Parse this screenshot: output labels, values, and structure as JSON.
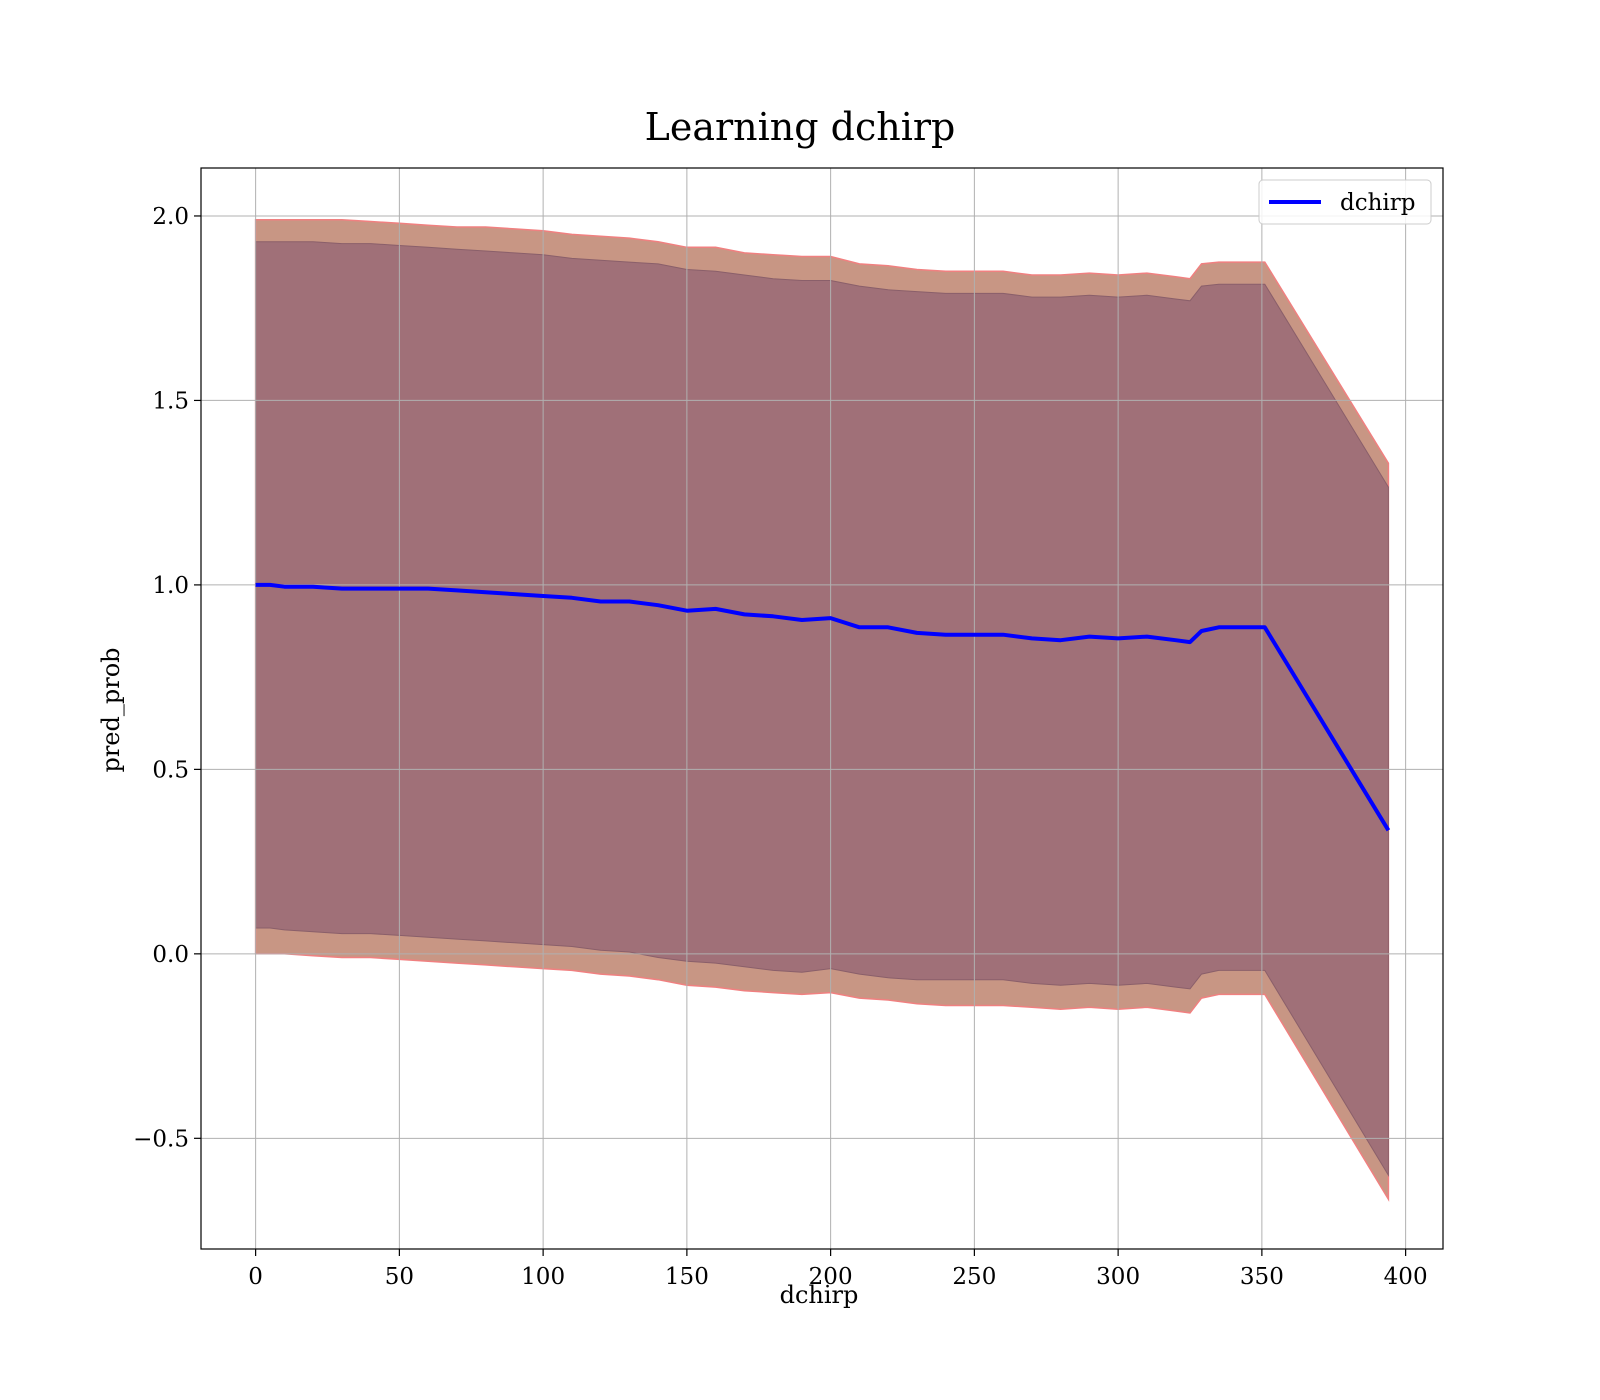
{
  "chart_data": {
    "type": "line",
    "title": "Learning dchirp",
    "xlabel": "dchirp",
    "ylabel": "pred_prob",
    "xlim": [
      -19,
      413
    ],
    "ylim": [
      -0.8,
      2.13
    ],
    "xticks": [
      0,
      50,
      100,
      150,
      200,
      250,
      300,
      350,
      400
    ],
    "yticks": [
      -0.5,
      0.0,
      0.5,
      1.0,
      1.5,
      2.0
    ],
    "xtick_labels": [
      "0",
      "50",
      "100",
      "150",
      "200",
      "250",
      "300",
      "350",
      "400"
    ],
    "ytick_labels": [
      "−0.5",
      "0.0",
      "0.5",
      "1.0",
      "1.5",
      "2.0"
    ],
    "grid": true,
    "legend": {
      "position": "top-right",
      "entries": [
        {
          "label": "dchirp",
          "color": "#0000ff"
        }
      ]
    },
    "colors": {
      "line": "#0000ff",
      "inner_band": "#a07078",
      "outer_band": "#c89684",
      "band_edge": "#f08080",
      "grid": "#b0b0b0"
    },
    "series": [
      {
        "name": "dchirp",
        "x": [
          0,
          5,
          10,
          20,
          30,
          40,
          50,
          60,
          70,
          80,
          90,
          100,
          110,
          120,
          130,
          140,
          150,
          160,
          170,
          180,
          190,
          200,
          210,
          220,
          230,
          240,
          250,
          260,
          270,
          280,
          290,
          300,
          310,
          320,
          325,
          329,
          335,
          345,
          351,
          394
        ],
        "y": [
          1.0,
          1.0,
          0.995,
          0.995,
          0.99,
          0.99,
          0.99,
          0.99,
          0.985,
          0.98,
          0.975,
          0.97,
          0.965,
          0.955,
          0.955,
          0.945,
          0.93,
          0.935,
          0.92,
          0.915,
          0.905,
          0.91,
          0.885,
          0.885,
          0.87,
          0.865,
          0.865,
          0.865,
          0.855,
          0.85,
          0.86,
          0.855,
          0.86,
          0.85,
          0.845,
          0.875,
          0.885,
          0.885,
          0.885,
          0.335
        ],
        "inner_upper": [
          1.93,
          1.93,
          1.93,
          1.93,
          1.925,
          1.925,
          1.92,
          1.915,
          1.91,
          1.905,
          1.9,
          1.895,
          1.885,
          1.88,
          1.875,
          1.87,
          1.855,
          1.85,
          1.84,
          1.83,
          1.825,
          1.825,
          1.81,
          1.8,
          1.795,
          1.79,
          1.79,
          1.79,
          1.78,
          1.78,
          1.785,
          1.78,
          1.785,
          1.775,
          1.77,
          1.81,
          1.815,
          1.815,
          1.815,
          1.265
        ],
        "inner_lower": [
          0.07,
          0.07,
          0.065,
          0.06,
          0.055,
          0.055,
          0.05,
          0.045,
          0.04,
          0.035,
          0.03,
          0.025,
          0.02,
          0.01,
          0.005,
          -0.01,
          -0.02,
          -0.025,
          -0.035,
          -0.045,
          -0.05,
          -0.04,
          -0.055,
          -0.065,
          -0.07,
          -0.07,
          -0.07,
          -0.07,
          -0.08,
          -0.085,
          -0.08,
          -0.085,
          -0.08,
          -0.09,
          -0.095,
          -0.055,
          -0.045,
          -0.045,
          -0.045,
          -0.6
        ],
        "outer_upper": [
          1.99,
          1.99,
          1.99,
          1.99,
          1.99,
          1.985,
          1.98,
          1.975,
          1.97,
          1.97,
          1.965,
          1.96,
          1.95,
          1.945,
          1.94,
          1.93,
          1.915,
          1.915,
          1.9,
          1.895,
          1.89,
          1.89,
          1.87,
          1.865,
          1.855,
          1.85,
          1.85,
          1.85,
          1.84,
          1.84,
          1.845,
          1.84,
          1.845,
          1.835,
          1.83,
          1.87,
          1.875,
          1.875,
          1.875,
          1.33
        ],
        "outer_lower": [
          0.0,
          0.0,
          0.0,
          -0.005,
          -0.01,
          -0.01,
          -0.015,
          -0.02,
          -0.025,
          -0.03,
          -0.035,
          -0.04,
          -0.045,
          -0.055,
          -0.06,
          -0.07,
          -0.085,
          -0.09,
          -0.1,
          -0.105,
          -0.11,
          -0.105,
          -0.12,
          -0.125,
          -0.135,
          -0.14,
          -0.14,
          -0.14,
          -0.145,
          -0.15,
          -0.145,
          -0.15,
          -0.145,
          -0.155,
          -0.16,
          -0.12,
          -0.11,
          -0.11,
          -0.11,
          -0.665
        ]
      }
    ]
  }
}
